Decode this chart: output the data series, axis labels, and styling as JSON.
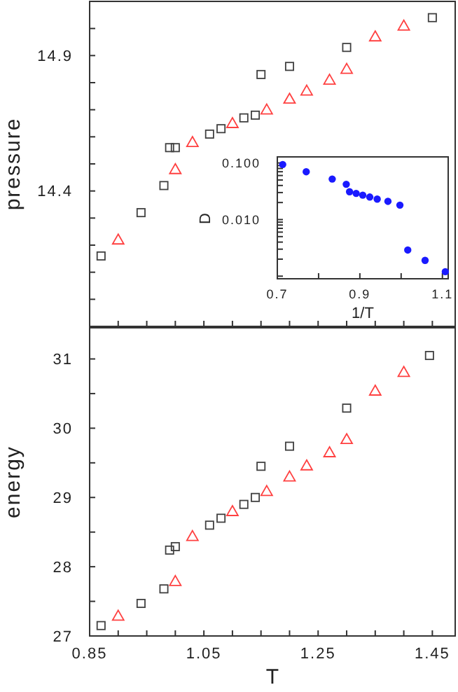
{
  "chart_data": [
    {
      "type": "scatter",
      "ylabel": "pressure",
      "xlim": [
        0.85,
        1.49
      ],
      "ylim": [
        13.9,
        15.1
      ],
      "tick_labels": "y",
      "xticks": [
        {
          "value": 0.85,
          "label": null
        },
        {
          "value": 0.9,
          "label": null
        },
        {
          "value": 0.95,
          "label": null
        },
        {
          "value": 1.0,
          "label": null
        },
        {
          "value": 1.05,
          "label": null
        },
        {
          "value": 1.1,
          "label": null
        },
        {
          "value": 1.15,
          "label": null
        },
        {
          "value": 1.2,
          "label": null
        },
        {
          "value": 1.25,
          "label": null
        },
        {
          "value": 1.3,
          "label": null
        },
        {
          "value": 1.35,
          "label": null
        },
        {
          "value": 1.4,
          "label": null
        },
        {
          "value": 1.45,
          "label": null
        }
      ],
      "yticks": [
        {
          "value": 14.0,
          "label": null
        },
        {
          "value": 14.1,
          "label": null
        },
        {
          "value": 14.2,
          "label": null
        },
        {
          "value": 14.3,
          "label": null
        },
        {
          "value": 14.4,
          "label": "14.4"
        },
        {
          "value": 14.5,
          "label": null
        },
        {
          "value": 14.6,
          "label": null
        },
        {
          "value": 14.7,
          "label": null
        },
        {
          "value": 14.8,
          "label": null
        },
        {
          "value": 14.9,
          "label": "14.9"
        },
        {
          "value": 15.0,
          "label": null
        }
      ],
      "series": [
        {
          "color": "#404040",
          "marker": "square",
          "x": [
            0.87,
            0.94,
            0.98,
            0.99,
            1.0,
            1.06,
            1.08,
            1.12,
            1.14,
            1.15,
            1.2,
            1.3,
            1.45
          ],
          "values": [
            14.16,
            14.32,
            14.42,
            14.56,
            14.56,
            14.61,
            14.63,
            14.67,
            14.68,
            14.83,
            14.86,
            14.93,
            15.04
          ]
        },
        {
          "color": "#ff4040",
          "marker": "triangle",
          "x": [
            0.9,
            1.0,
            1.03,
            1.1,
            1.16,
            1.2,
            1.23,
            1.27,
            1.3,
            1.35,
            1.4
          ],
          "values": [
            14.22,
            14.48,
            14.58,
            14.65,
            14.7,
            14.74,
            14.77,
            14.81,
            14.85,
            14.97,
            15.01
          ]
        }
      ]
    },
    {
      "type": "scatter",
      "xlabel": "1/T",
      "ylabel": "D",
      "log": "y",
      "xlim": [
        0.7,
        1.114
      ],
      "ylim": [
        0.0009,
        0.128
      ],
      "xticks": [
        0.7,
        {
          "value": 0.8,
          "label": null
        },
        0.9,
        {
          "value": 1.0,
          "label": null
        },
        1.1
      ],
      "yticks": [
        {
          "value": 0.001,
          "label": null
        },
        {
          "value": 0.002,
          "label": null
        },
        {
          "value": 0.003,
          "label": null
        },
        {
          "value": 0.004,
          "label": null
        },
        {
          "value": 0.005,
          "label": null
        },
        {
          "value": 0.006,
          "label": null
        },
        {
          "value": 0.007,
          "label": null
        },
        {
          "value": 0.008,
          "label": null
        },
        {
          "value": 0.009,
          "label": null
        },
        {
          "value": 0.01,
          "label": "0.010"
        },
        {
          "value": 0.02,
          "label": null
        },
        {
          "value": 0.03,
          "label": null
        },
        {
          "value": 0.04,
          "label": null
        },
        {
          "value": 0.05,
          "label": null
        },
        {
          "value": 0.06,
          "label": null
        },
        {
          "value": 0.07,
          "label": null
        },
        {
          "value": 0.08,
          "label": null
        },
        {
          "value": 0.09,
          "label": null
        },
        {
          "value": 0.1,
          "label": "0.100"
        }
      ],
      "series": [
        {
          "color": "#1a1aff",
          "marker": "circle",
          "x": [
            0.713,
            0.77,
            0.833,
            0.867,
            0.875,
            0.891,
            0.907,
            0.924,
            0.942,
            0.968,
            0.997,
            1.016,
            1.058,
            1.107
          ],
          "values": [
            0.094,
            0.07,
            0.052,
            0.042,
            0.031,
            0.029,
            0.027,
            0.025,
            0.023,
            0.021,
            0.018,
            0.0029,
            0.0019,
            0.0012
          ]
        }
      ]
    },
    {
      "type": "scatter",
      "xlabel": "T",
      "ylabel": "energy",
      "xlim": [
        0.85,
        1.49
      ],
      "ylim": [
        27,
        31.45
      ],
      "xticks": [
        0.85,
        {
          "value": 0.9,
          "label": null
        },
        {
          "value": 0.95,
          "label": null
        },
        {
          "value": 1.0,
          "label": null
        },
        1.05,
        {
          "value": 1.1,
          "label": null
        },
        {
          "value": 1.15,
          "label": null
        },
        {
          "value": 1.2,
          "label": null
        },
        1.25,
        {
          "value": 1.3,
          "label": null
        },
        {
          "value": 1.35,
          "label": null
        },
        {
          "value": 1.4,
          "label": null
        },
        1.45
      ],
      "yticks": [
        27,
        {
          "value": 27.5,
          "label": null
        },
        28,
        {
          "value": 28.5,
          "label": null
        },
        29,
        {
          "value": 29.5,
          "label": null
        },
        30,
        {
          "value": 30.5,
          "label": null
        },
        31
      ],
      "series": [
        {
          "color": "#404040",
          "marker": "square",
          "x": [
            0.87,
            0.94,
            0.98,
            0.99,
            1.0,
            1.06,
            1.08,
            1.12,
            1.14,
            1.15,
            1.2,
            1.3,
            1.445
          ],
          "values": [
            27.15,
            27.47,
            27.68,
            28.24,
            28.29,
            28.6,
            28.7,
            28.9,
            29.0,
            29.45,
            29.74,
            30.29,
            31.05
          ]
        },
        {
          "color": "#ff4040",
          "marker": "triangle",
          "x": [
            0.9,
            1.0,
            1.03,
            1.1,
            1.16,
            1.2,
            1.23,
            1.27,
            1.3,
            1.35,
            1.4
          ],
          "values": [
            27.29,
            27.79,
            28.44,
            28.8,
            29.09,
            29.3,
            29.46,
            29.65,
            29.84,
            30.54,
            30.81
          ]
        }
      ]
    }
  ]
}
